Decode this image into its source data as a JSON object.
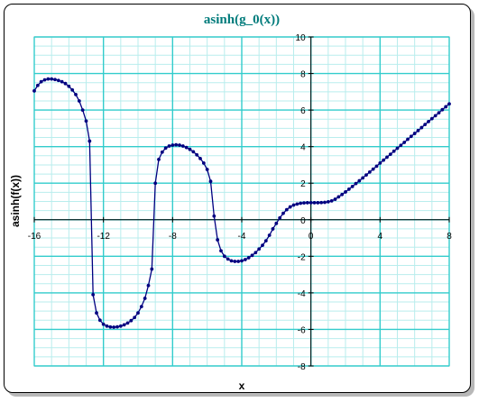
{
  "colors": {
    "title": "#007b7b",
    "major_grid": "#33cccc",
    "minor_grid": "#b9eded",
    "series": "#000080",
    "axis": "#000000"
  },
  "chart_data": {
    "type": "line",
    "title": "asinh(g_0(x))",
    "xlabel": "x",
    "ylabel": "asinh(f(x))",
    "xlim": [
      -16,
      8
    ],
    "ylim": [
      -8,
      10
    ],
    "x_major_step": 4,
    "y_major_step": 2,
    "x_minor_step": 1,
    "y_minor_step": 0.5,
    "grid": true,
    "markers": true,
    "x_tick_labels": [
      "-16",
      "-12",
      "-8",
      "-4",
      "0",
      "4",
      "8"
    ],
    "y_tick_labels": [
      "-8",
      "-6",
      "-4",
      "-2",
      "0",
      "2",
      "4",
      "6",
      "8",
      "10"
    ],
    "series": [
      {
        "x": [
          -16.0,
          -15.8,
          -15.6,
          -15.4,
          -15.2,
          -15.0,
          -14.8,
          -14.6,
          -14.4,
          -14.2,
          -14.0,
          -13.8,
          -13.6,
          -13.4,
          -13.2,
          -13.0,
          -12.8,
          -12.6,
          -12.4,
          -12.2,
          -12.0,
          -11.8,
          -11.6,
          -11.4,
          -11.2,
          -11.0,
          -10.8,
          -10.6,
          -10.4,
          -10.2,
          -10.0,
          -9.8,
          -9.6,
          -9.4,
          -9.2,
          -9.0,
          -8.8,
          -8.6,
          -8.4,
          -8.2,
          -8.0,
          -7.8,
          -7.6,
          -7.4,
          -7.2,
          -7.0,
          -6.8,
          -6.6,
          -6.4,
          -6.2,
          -6.0,
          -5.8,
          -5.6,
          -5.4,
          -5.2,
          -5.0,
          -4.8,
          -4.6,
          -4.4,
          -4.2,
          -4.0,
          -3.8,
          -3.6,
          -3.4,
          -3.2,
          -3.0,
          -2.8,
          -2.6,
          -2.4,
          -2.2,
          -2.0,
          -1.8,
          -1.6,
          -1.4,
          -1.2,
          -1.0,
          -0.8,
          -0.6,
          -0.4,
          -0.2,
          0.0,
          0.2,
          0.4,
          0.6,
          0.8,
          1.0,
          1.2,
          1.4,
          1.6,
          1.8,
          2.0,
          2.2,
          2.4,
          2.6,
          2.8,
          3.0,
          3.2,
          3.4,
          3.6,
          3.8,
          4.0,
          4.2,
          4.4,
          4.6,
          4.8,
          5.0,
          5.2,
          5.4,
          5.6,
          5.8,
          6.0,
          6.2,
          6.4,
          6.6,
          6.8,
          7.0,
          7.2,
          7.4,
          7.6,
          7.8,
          8.0
        ],
        "y": [
          7.05,
          7.35,
          7.55,
          7.65,
          7.7,
          7.7,
          7.67,
          7.62,
          7.55,
          7.45,
          7.3,
          7.1,
          6.85,
          6.5,
          6.0,
          5.4,
          4.3,
          -4.1,
          -5.1,
          -5.5,
          -5.72,
          -5.82,
          -5.87,
          -5.88,
          -5.86,
          -5.82,
          -5.75,
          -5.65,
          -5.52,
          -5.35,
          -5.1,
          -4.75,
          -4.3,
          -3.6,
          -2.7,
          2.0,
          3.3,
          3.7,
          3.92,
          4.03,
          4.08,
          4.1,
          4.08,
          4.03,
          3.95,
          3.85,
          3.72,
          3.55,
          3.35,
          3.1,
          2.75,
          2.1,
          0.2,
          -1.1,
          -1.7,
          -2.0,
          -2.15,
          -2.25,
          -2.28,
          -2.28,
          -2.25,
          -2.18,
          -2.08,
          -1.95,
          -1.8,
          -1.6,
          -1.4,
          -1.15,
          -0.85,
          -0.5,
          -0.2,
          0.1,
          0.35,
          0.55,
          0.7,
          0.8,
          0.86,
          0.9,
          0.92,
          0.93,
          0.93,
          0.93,
          0.93,
          0.94,
          0.95,
          0.98,
          1.03,
          1.12,
          1.25,
          1.38,
          1.52,
          1.67,
          1.82,
          1.98,
          2.13,
          2.29,
          2.45,
          2.61,
          2.77,
          2.93,
          3.1,
          3.26,
          3.42,
          3.58,
          3.75,
          3.91,
          4.07,
          4.23,
          4.4,
          4.56,
          4.72,
          4.88,
          5.04,
          5.21,
          5.37,
          5.53,
          5.69,
          5.85,
          6.02,
          6.18,
          6.34
        ]
      }
    ]
  }
}
